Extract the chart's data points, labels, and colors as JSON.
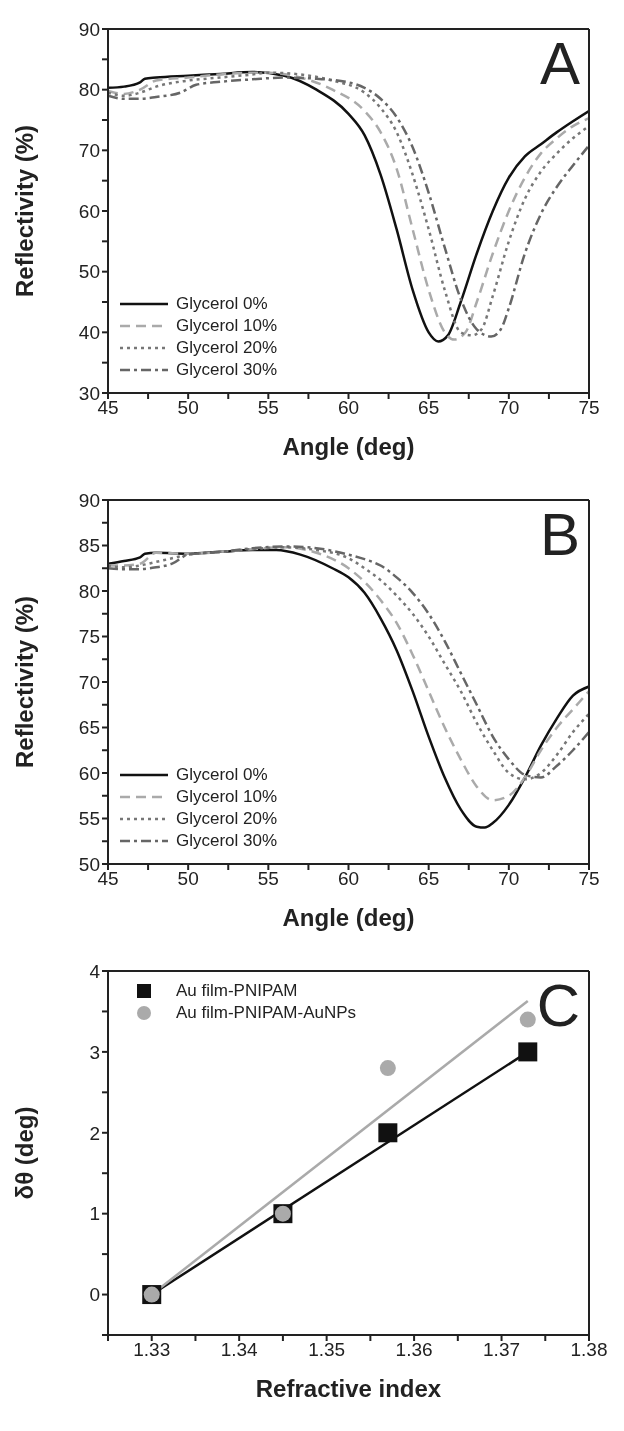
{
  "chart_data": [
    {
      "type": "line",
      "xlabel": "Angle (deg)",
      "ylabel": "Reflectivity (%)",
      "annotations": [
        "A"
      ],
      "legend": "bottom left",
      "xlim": [
        45,
        75
      ],
      "xticks": [
        45,
        {
          "value": 47.5,
          "label": null
        },
        50,
        {
          "value": 52.5,
          "label": null
        },
        55,
        {
          "value": 57.5,
          "label": null
        },
        60,
        {
          "value": 62.5,
          "label": null
        },
        65,
        {
          "value": 67.5,
          "label": null
        },
        70,
        {
          "value": 72.5,
          "label": null
        },
        75
      ],
      "ylim": [
        30,
        90
      ],
      "yticks": [
        30,
        {
          "value": 35,
          "label": null
        },
        40,
        {
          "value": 45,
          "label": null
        },
        50,
        {
          "value": 55,
          "label": null
        },
        60,
        {
          "value": 65,
          "label": null
        },
        70,
        {
          "value": 75,
          "label": null
        },
        80,
        {
          "value": 85,
          "label": null
        },
        90
      ],
      "series": [
        {
          "name": "Glycerol 0%",
          "color": "#111111",
          "line_style": "solid",
          "x": [
            45,
            46,
            47,
            47.3,
            48,
            50,
            52,
            54,
            56,
            58,
            60,
            61,
            62,
            63,
            64,
            65,
            65.6,
            66.2,
            67,
            68,
            69,
            70,
            71,
            72,
            73,
            74,
            75
          ],
          "values": [
            80.3,
            80.5,
            81.2,
            81.8,
            82,
            82.3,
            82.6,
            82.9,
            82.3,
            80,
            76,
            72.5,
            66,
            57,
            47,
            40,
            38.5,
            39.5,
            45,
            53,
            60,
            65.5,
            69,
            71,
            73,
            74.8,
            76.5
          ]
        },
        {
          "name": "Glycerol 10%",
          "color": "#aaaaaa",
          "line_style": "dashed",
          "x": [
            45,
            46,
            47,
            48,
            50,
            52,
            54,
            55,
            57,
            59,
            61,
            62,
            63,
            64,
            65,
            66,
            66.6,
            67.3,
            68,
            69,
            70,
            71,
            72,
            73,
            74,
            75
          ],
          "values": [
            79.8,
            79.3,
            80,
            81.5,
            82,
            82.5,
            82.8,
            82.8,
            82,
            80,
            76.5,
            73,
            67,
            57,
            47,
            40,
            38.8,
            40,
            45,
            53,
            60,
            65.5,
            69.5,
            72,
            74,
            75.3
          ]
        },
        {
          "name": "Glycerol 20%",
          "color": "#777777",
          "line_style": "dotted",
          "x": [
            45,
            46,
            47,
            48,
            50,
            52,
            54,
            55,
            57,
            59,
            61,
            62,
            63,
            64,
            65,
            66,
            67,
            67.7,
            68.3,
            69,
            70,
            71,
            72,
            73,
            74,
            75
          ],
          "values": [
            79.5,
            79,
            79.5,
            80.5,
            81.5,
            82,
            82.5,
            82.8,
            82.5,
            81.5,
            79.5,
            77,
            73,
            66,
            57,
            47,
            40,
            39.5,
            40.5,
            46,
            55,
            62,
            66.5,
            69.5,
            72,
            74
          ]
        },
        {
          "name": "Glycerol 30%",
          "color": "#666666",
          "line_style": "dashdot",
          "x": [
            45,
            46,
            47,
            48,
            49.5,
            50.5,
            52,
            54,
            56,
            58,
            60,
            61,
            62,
            63,
            64,
            65,
            66,
            67,
            68,
            68.9,
            69.5,
            70,
            71,
            72,
            73,
            74,
            75
          ],
          "values": [
            79,
            78.5,
            78.5,
            78.8,
            79.5,
            80.8,
            81.3,
            81.7,
            82,
            81.8,
            81.2,
            80.3,
            78.5,
            75.5,
            70.5,
            63,
            54,
            45.5,
            40.5,
            39.3,
            40.5,
            44,
            53,
            59.5,
            64,
            67.5,
            70.8
          ]
        }
      ]
    },
    {
      "type": "line",
      "xlabel": "Angle (deg)",
      "ylabel": "Reflectivity (%)",
      "annotations": [
        "B"
      ],
      "legend": "bottom left",
      "xlim": [
        45,
        75
      ],
      "xticks": [
        45,
        {
          "value": 47.5,
          "label": null
        },
        50,
        {
          "value": 52.5,
          "label": null
        },
        55,
        {
          "value": 57.5,
          "label": null
        },
        60,
        {
          "value": 62.5,
          "label": null
        },
        65,
        {
          "value": 67.5,
          "label": null
        },
        70,
        {
          "value": 72.5,
          "label": null
        },
        75
      ],
      "ylim": [
        50,
        90
      ],
      "yticks": [
        50,
        {
          "value": 52.5,
          "label": null
        },
        55,
        {
          "value": 57.5,
          "label": null
        },
        60,
        {
          "value": 62.5,
          "label": null
        },
        65,
        {
          "value": 67.5,
          "label": null
        },
        70,
        {
          "value": 72.5,
          "label": null
        },
        75,
        {
          "value": 77.5,
          "label": null
        },
        80,
        {
          "value": 82.5,
          "label": null
        },
        85,
        {
          "value": 87.5,
          "label": null
        },
        90
      ],
      "series": [
        {
          "name": "Glycerol 0%",
          "color": "#111111",
          "line_style": "solid",
          "x": [
            45,
            46,
            47,
            47.3,
            48,
            50,
            52,
            54,
            55.5,
            57,
            59,
            60,
            61,
            62,
            63,
            64,
            65,
            66,
            67,
            68,
            68.5,
            69,
            70,
            71,
            72,
            73,
            74,
            75
          ],
          "values": [
            83,
            83.3,
            83.7,
            84.1,
            84.2,
            84.1,
            84.3,
            84.5,
            84.5,
            84,
            82.5,
            81.5,
            79.8,
            77,
            73.5,
            69,
            64,
            59.5,
            56,
            54.1,
            54,
            54.5,
            56.5,
            59.5,
            63,
            66,
            68.5,
            69.5
          ]
        },
        {
          "name": "Glycerol 10%",
          "color": "#aaaaaa",
          "line_style": "dashed",
          "x": [
            45,
            46,
            47,
            48,
            50,
            52,
            54,
            56,
            58,
            60,
            61,
            62,
            63,
            64,
            65,
            66,
            67,
            68,
            69,
            70,
            71,
            72,
            73,
            74,
            75
          ],
          "values": [
            82.8,
            82.8,
            83,
            84.2,
            84.1,
            84.3,
            84.6,
            84.8,
            84.2,
            82.5,
            81,
            79,
            76.5,
            73,
            69,
            65,
            61.5,
            58.5,
            57,
            57.5,
            59.5,
            62.5,
            65,
            67,
            69
          ]
        },
        {
          "name": "Glycerol 20%",
          "color": "#777777",
          "line_style": "dotted",
          "x": [
            45,
            46,
            47,
            48,
            49,
            50,
            52,
            54,
            56,
            58,
            60,
            61,
            62,
            63,
            64,
            65,
            66,
            67,
            68,
            69,
            70,
            71,
            72,
            73,
            74,
            75
          ],
          "values": [
            82.8,
            82.6,
            82.8,
            83.2,
            83.6,
            84,
            84.3,
            84.6,
            84.8,
            84.5,
            83.6,
            82.5,
            81.2,
            79.5,
            77.5,
            75,
            72,
            69,
            65.5,
            62.5,
            60,
            59.3,
            60,
            62,
            64.5,
            66.5
          ]
        },
        {
          "name": "Glycerol 30%",
          "color": "#666666",
          "line_style": "dashdot",
          "x": [
            45,
            46,
            47,
            48,
            49,
            50,
            52,
            54,
            56,
            58,
            60,
            61,
            62,
            63,
            64,
            65,
            66,
            67,
            68,
            69,
            70,
            71,
            72,
            73,
            74,
            75
          ],
          "values": [
            82.5,
            82.4,
            82.4,
            82.6,
            83,
            84,
            84.3,
            84.7,
            84.9,
            84.7,
            84,
            83.5,
            82.8,
            81.5,
            79.8,
            77.5,
            74.5,
            71,
            67.5,
            64,
            61.5,
            59.8,
            59.5,
            60.8,
            62.5,
            64.5
          ]
        }
      ]
    },
    {
      "type": "scatter",
      "xlabel": "Refractive index",
      "ylabel": "δθ (deg)",
      "annotations": [
        "C"
      ],
      "legend": "top left",
      "xlim": [
        1.325,
        1.38
      ],
      "xticks": [
        {
          "value": 1.325,
          "label": null
        },
        1.33,
        {
          "value": 1.335,
          "label": null
        },
        1.34,
        {
          "value": 1.345,
          "label": null
        },
        1.35,
        {
          "value": 1.355,
          "label": null
        },
        1.36,
        {
          "value": 1.365,
          "label": null
        },
        1.37,
        {
          "value": 1.375,
          "label": null
        },
        1.38
      ],
      "ylim": [
        -0.5,
        4
      ],
      "yticks": [
        {
          "value": -0.5,
          "label": null
        },
        0,
        {
          "value": 0.5,
          "label": null
        },
        1,
        {
          "value": 1.5,
          "label": null
        },
        2,
        {
          "value": 2.5,
          "label": null
        },
        3,
        {
          "value": 3.5,
          "label": null
        },
        4
      ],
      "series": [
        {
          "type": "line",
          "color": "#111111",
          "x": [
            1.33,
            1.373
          ],
          "values": [
            0,
            3
          ]
        },
        {
          "type": "line",
          "color": "#aaaaaa",
          "x": [
            1.33,
            1.373
          ],
          "values": [
            0,
            3.63
          ]
        },
        {
          "name": "Au film-PNIPAM",
          "color": "#111111",
          "marker": "square",
          "x": [
            1.33,
            1.345,
            1.357,
            1.373
          ],
          "values": [
            0,
            1,
            2,
            3
          ]
        },
        {
          "name": "Au film-PNIPAM-AuNPs",
          "color": "#aaaaaa",
          "marker": "circle",
          "x": [
            1.33,
            1.345,
            1.357,
            1.373
          ],
          "values": [
            0,
            1,
            2.8,
            3.4
          ]
        }
      ]
    }
  ]
}
